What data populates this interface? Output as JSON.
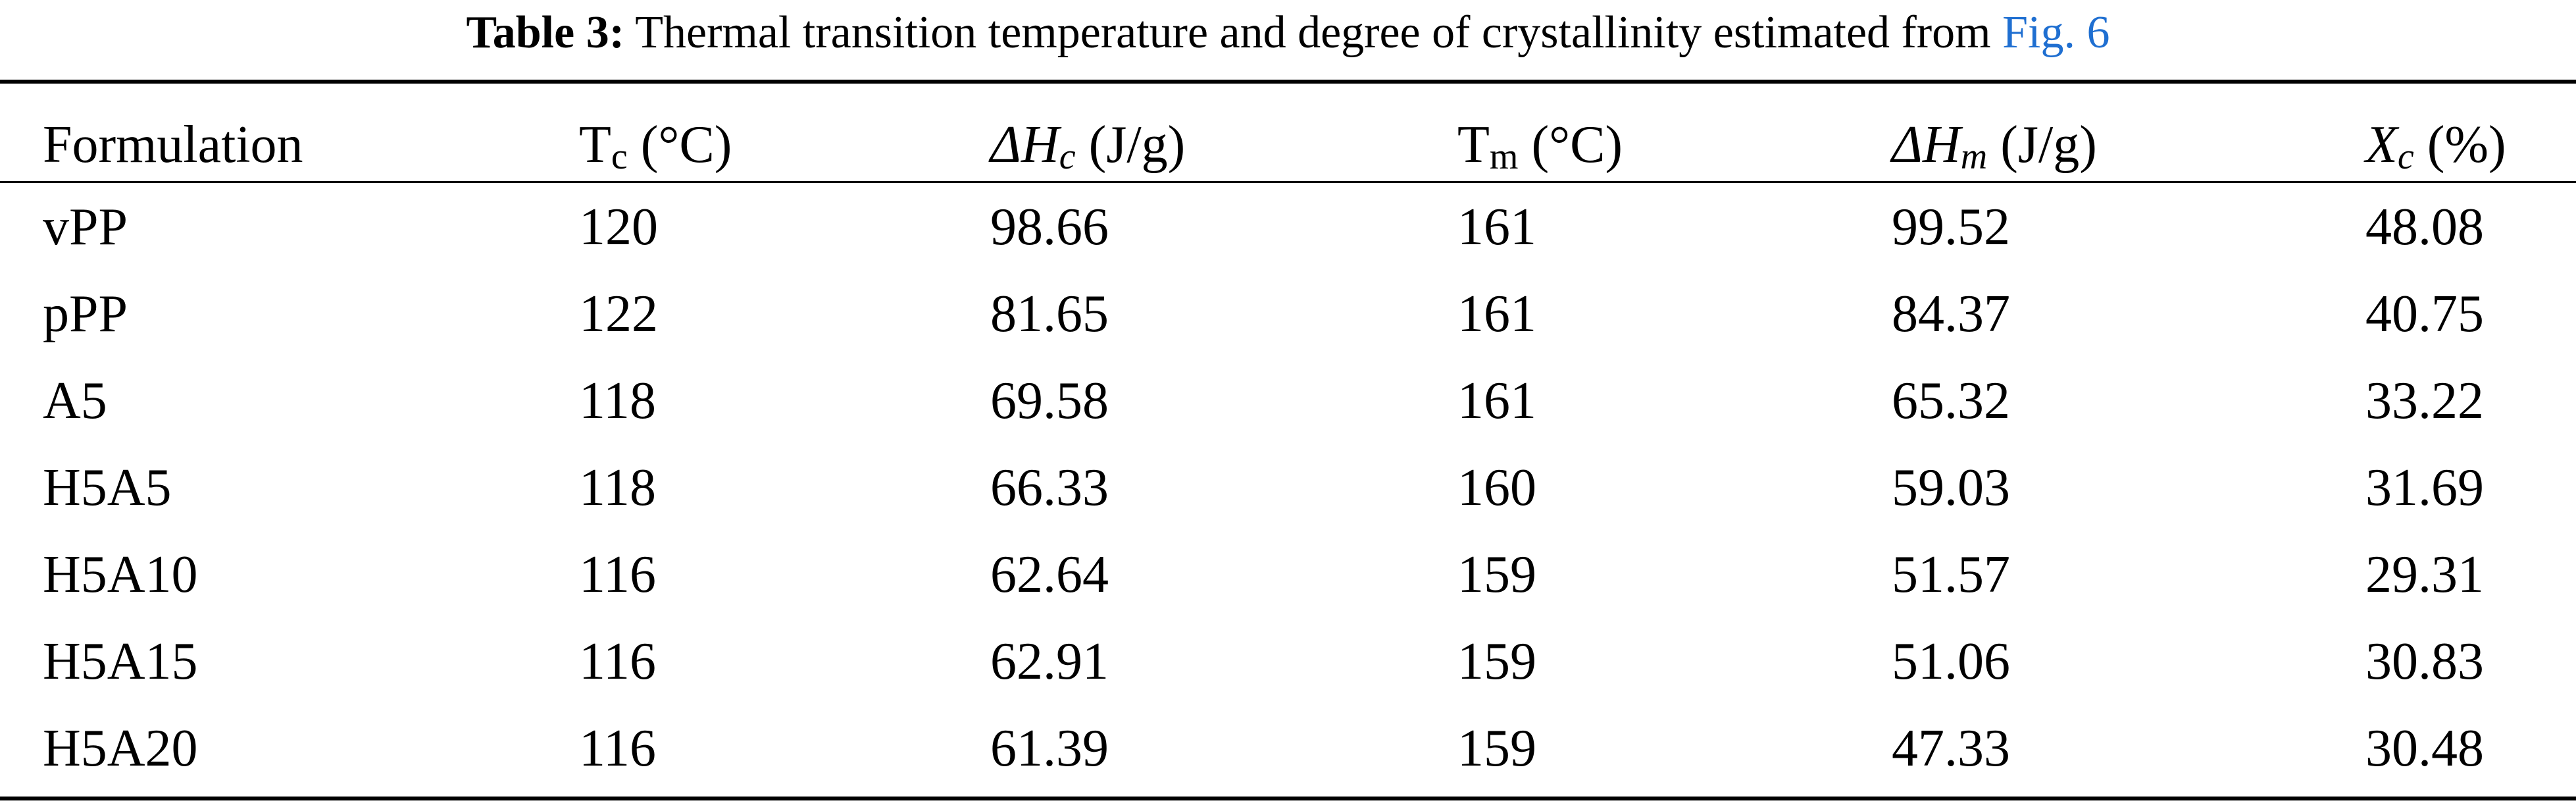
{
  "caption": {
    "label": "Table 3:",
    "text": "Thermal transition temperature and degree of crystallinity estimated from",
    "link": "Fig. 6"
  },
  "headers": [
    {
      "pre": "Formulation",
      "main": "",
      "sub": "",
      "unit": "",
      "italic": false
    },
    {
      "pre": "",
      "main": "T",
      "sub": "c",
      "unit": " (°C)",
      "italic": false
    },
    {
      "pre": "",
      "main": "ΔH",
      "sub": "c",
      "unit": " (J/g)",
      "italic": true
    },
    {
      "pre": "",
      "main": "T",
      "sub": "m",
      "unit": " (°C)",
      "italic": false
    },
    {
      "pre": "",
      "main": "ΔH",
      "sub": "m",
      "unit": " (J/g)",
      "italic": true
    },
    {
      "pre": "",
      "main": "X",
      "sub": "c",
      "unit": " (%)",
      "italic": true
    }
  ],
  "rows": [
    [
      "vPP",
      "120",
      "98.66",
      "161",
      "99.52",
      "48.08"
    ],
    [
      "pPP",
      "122",
      "81.65",
      "161",
      "84.37",
      "40.75"
    ],
    [
      "A5",
      "118",
      "69.58",
      "161",
      "65.32",
      "33.22"
    ],
    [
      "H5A5",
      "118",
      "66.33",
      "160",
      "59.03",
      "31.69"
    ],
    [
      "H5A10",
      "116",
      "62.64",
      "159",
      "51.57",
      "29.31"
    ],
    [
      "H5A15",
      "116",
      "62.91",
      "159",
      "51.06",
      "30.83"
    ],
    [
      "H5A20",
      "116",
      "61.39",
      "159",
      "47.33",
      "30.48"
    ]
  ]
}
